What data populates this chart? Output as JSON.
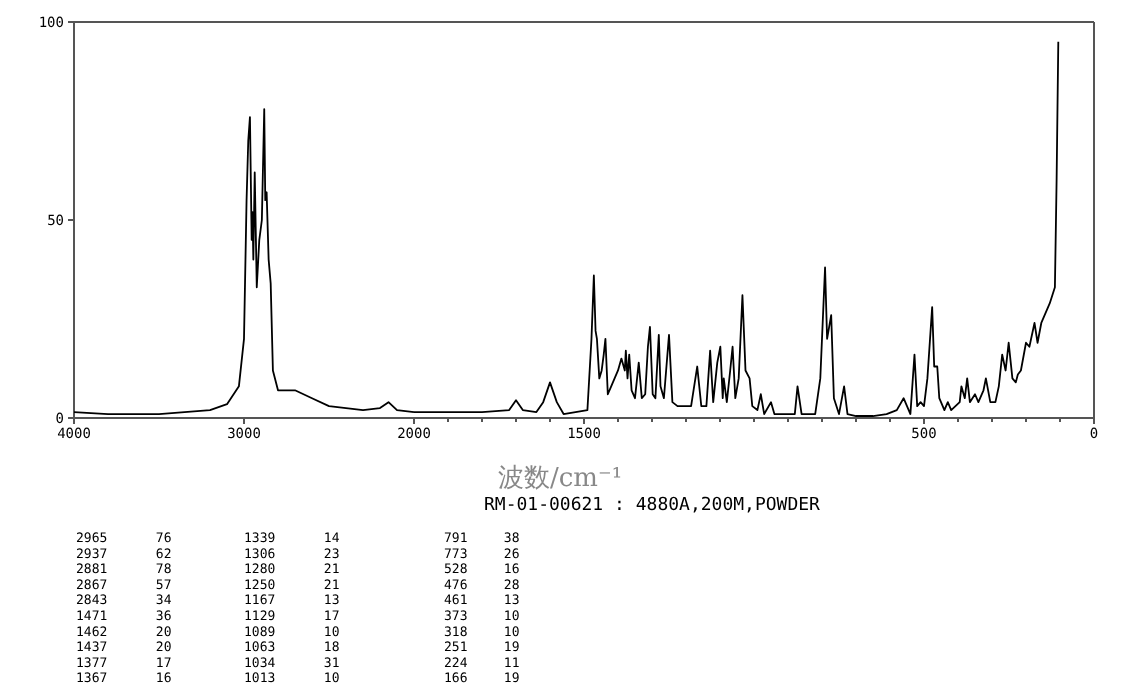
{
  "chart_data": [
    {
      "type": "line",
      "xlim": [
        4000,
        2000
      ],
      "xticks": [
        4000,
        3000,
        2000
      ],
      "ylim": [
        0,
        100
      ],
      "yticks": [
        0,
        50,
        100
      ],
      "marker": "none",
      "line_style": "solid",
      "series": [
        {
          "color": "#000000",
          "x": [
            4000,
            3800,
            3500,
            3200,
            3100,
            3030,
            3000,
            2985,
            2975,
            2965,
            2955,
            2950,
            2945,
            2937,
            2925,
            2910,
            2895,
            2881,
            2875,
            2867,
            2855,
            2843,
            2830,
            2800,
            2750,
            2700,
            2650,
            2600,
            2500,
            2400,
            2300,
            2200,
            2150,
            2100,
            2000
          ],
          "values": [
            1.5,
            1,
            1,
            2,
            3.5,
            8,
            20,
            55,
            70,
            76,
            45,
            52,
            40,
            62,
            33,
            45,
            50,
            78,
            55,
            57,
            40,
            34,
            12,
            7,
            7,
            7,
            6,
            5,
            3,
            2.5,
            2,
            2.5,
            4,
            2,
            1.5
          ]
        }
      ]
    },
    {
      "type": "line",
      "xlabel": "波数/cm⁻¹",
      "annotations": [
        "RM-01-00621 : 4880A,200M,POWDER",
        "2965 76",
        "2937 62",
        "2881 78",
        "2867 57",
        "2843 34",
        "1471 36",
        "1462 20",
        "1437 20",
        "1377 17",
        "1367 16",
        "1339 14",
        "1306 23",
        "1280 21",
        "1250 21",
        "1167 13",
        "1129 17",
        "1089 10",
        "1063 18",
        "1034 31",
        "1013 10",
        "791 38",
        "773 26",
        "528 16",
        "476 28",
        "461 13",
        "373 10",
        "318 10",
        "251 19",
        "224 11",
        "166 19"
      ],
      "xlim": [
        2000,
        0
      ],
      "xticks": [
        {
          "value": 2000,
          "label": null
        },
        {
          "value": 1900,
          "label": null
        },
        {
          "value": 1800,
          "label": null
        },
        {
          "value": 1700,
          "label": null
        },
        {
          "value": 1600,
          "label": null
        },
        1500,
        {
          "value": 1400,
          "label": null
        },
        {
          "value": 1300,
          "label": null
        },
        {
          "value": 1200,
          "label": null
        },
        {
          "value": 1100,
          "label": null
        },
        {
          "value": 1000,
          "label": null
        },
        {
          "value": 900,
          "label": null
        },
        {
          "value": 800,
          "label": null
        },
        {
          "value": 700,
          "label": null
        },
        {
          "value": 600,
          "label": null
        },
        500,
        {
          "value": 400,
          "label": null
        },
        {
          "value": 300,
          "label": null
        },
        {
          "value": 200,
          "label": null
        },
        {
          "value": 100,
          "label": null
        },
        0
      ],
      "ylim": [
        0,
        100
      ],
      "tick_labels": "x",
      "marker": "none",
      "line_style": "solid",
      "series": [
        {
          "color": "#000000",
          "x": [
            2000,
            1900,
            1800,
            1720,
            1700,
            1680,
            1640,
            1620,
            1600,
            1580,
            1560,
            1490,
            1478,
            1471,
            1466,
            1462,
            1455,
            1448,
            1442,
            1437,
            1430,
            1420,
            1400,
            1390,
            1380,
            1377,
            1372,
            1367,
            1360,
            1350,
            1339,
            1330,
            1320,
            1312,
            1306,
            1298,
            1290,
            1280,
            1275,
            1265,
            1250,
            1240,
            1225,
            1200,
            1185,
            1167,
            1155,
            1140,
            1129,
            1120,
            1108,
            1099,
            1092,
            1089,
            1080,
            1070,
            1063,
            1055,
            1045,
            1034,
            1025,
            1013,
            1005,
            990,
            980,
            970,
            950,
            940,
            880,
            872,
            860,
            820,
            805,
            791,
            785,
            773,
            765,
            750,
            735,
            725,
            700,
            650,
            610,
            580,
            560,
            550,
            540,
            528,
            520,
            510,
            500,
            490,
            476,
            470,
            461,
            455,
            440,
            430,
            420,
            395,
            390,
            380,
            373,
            365,
            350,
            340,
            325,
            318,
            305,
            290,
            280,
            270,
            260,
            251,
            240,
            230,
            224,
            215,
            200,
            190,
            175,
            166,
            155,
            130,
            115,
            110,
            105
          ],
          "values": [
            1.5,
            1.5,
            1.5,
            2,
            4.5,
            2,
            1.5,
            4,
            9,
            4,
            1,
            2,
            20,
            36,
            22,
            20,
            10,
            12,
            16,
            20,
            6,
            8,
            12,
            15,
            12,
            17,
            10,
            16,
            7,
            5,
            14,
            5,
            6,
            18,
            23,
            6,
            5,
            21,
            8,
            5,
            21,
            4,
            3,
            3,
            3,
            13,
            3,
            3,
            17,
            4,
            14,
            18,
            5,
            10,
            4,
            12,
            18,
            5,
            10,
            31,
            12,
            10,
            3,
            2,
            6,
            1,
            4,
            1,
            1,
            8,
            1,
            1,
            10,
            38,
            20,
            26,
            5,
            1,
            8,
            1,
            0.5,
            0.5,
            1,
            2,
            5,
            3,
            1,
            16,
            3,
            4,
            3,
            10,
            28,
            13,
            13,
            5,
            2,
            4,
            2,
            4,
            8,
            5,
            10,
            4,
            6,
            4,
            7,
            10,
            4,
            4,
            8,
            16,
            12,
            19,
            10,
            9,
            11,
            12,
            19,
            18,
            24,
            19,
            24,
            29,
            33,
            60,
            95
          ]
        }
      ]
    }
  ]
}
